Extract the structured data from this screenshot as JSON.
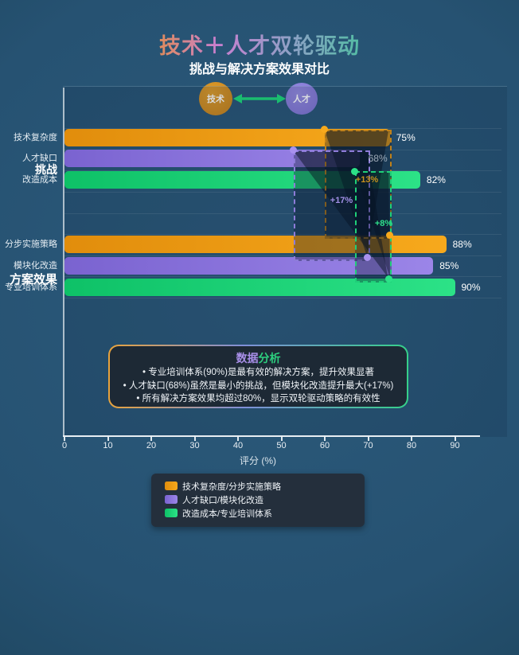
{
  "header": {
    "title": "技术＋人才双轮驱动",
    "subtitle": "挑战与解决方案效果对比"
  },
  "badges": {
    "left": {
      "label": "技术",
      "color": "#cc8a1e"
    },
    "right": {
      "label": "人才",
      "color": "#8a7fdb"
    },
    "arrow_color": "#1ddb7a"
  },
  "chart_data": {
    "type": "bar",
    "orientation": "horizontal",
    "title": "挑战与解决方案效果对比",
    "xlabel": "评分 (%)",
    "xlim": [
      0,
      100
    ],
    "xticks": [
      0,
      10,
      20,
      30,
      40,
      50,
      60,
      70,
      80,
      90
    ],
    "grid": "faint horizontal row separators",
    "groups": [
      {
        "label": "挑战"
      },
      {
        "label": "方案效果"
      }
    ],
    "bars": [
      {
        "group": "挑战",
        "category": "技术复杂度",
        "value": 75,
        "label": "75%",
        "color": "orange",
        "hex": "#f2a01d"
      },
      {
        "group": "挑战",
        "category": "人才缺口",
        "value": 68,
        "label": "68%",
        "color": "purple",
        "hex": "#8a75d8"
      },
      {
        "group": "挑战",
        "category": "改造成本",
        "value": 82,
        "label": "82%",
        "color": "green",
        "hex": "#1ecb72"
      },
      {
        "group": "方案效果",
        "category": "分步实施策略",
        "value": 88,
        "label": "88%",
        "color": "orange",
        "hex": "#f2a01d"
      },
      {
        "group": "方案效果",
        "category": "模块化改造",
        "value": 85,
        "label": "85%",
        "color": "purple",
        "hex": "#8a75d8"
      },
      {
        "group": "方案效果",
        "category": "专业培训体系",
        "value": 90,
        "label": "90%",
        "color": "green",
        "hex": "#1ecb72"
      }
    ],
    "deltas": [
      {
        "pair": "技术复杂度→分步实施策略",
        "label": "+13%",
        "color": "#c9921e"
      },
      {
        "pair": "人才缺口→模块化改造",
        "label": "+17%",
        "color": "#a18fe6"
      },
      {
        "pair": "改造成本→专业培训体系",
        "label": "+8%",
        "color": "#2ee08a"
      }
    ],
    "legend": [
      {
        "label": "技术复杂度/分步实施策略",
        "color": "orange"
      },
      {
        "label": "人才缺口/模块化改造",
        "color": "purple"
      },
      {
        "label": "改造成本/专业培训体系",
        "color": "green"
      }
    ],
    "legend_position": "bottom-center"
  },
  "analysis": {
    "title": {
      "part1": "数据",
      "part2": "分析"
    },
    "bullets": [
      "• 专业培训体系(90%)是最有效的解决方案，提升效果显著",
      "• 人才缺口(68%)虽然是最小的挑战，但模块化改造提升最大(+17%)",
      "• 所有解决方案效果均超过80%，显示双轮驱动策略的有效性"
    ]
  },
  "colors": {
    "background": "#265272",
    "orange": "#f2a01d",
    "purple": "#8a75d8",
    "green": "#1ecb72",
    "axis": "#e8eef3"
  }
}
